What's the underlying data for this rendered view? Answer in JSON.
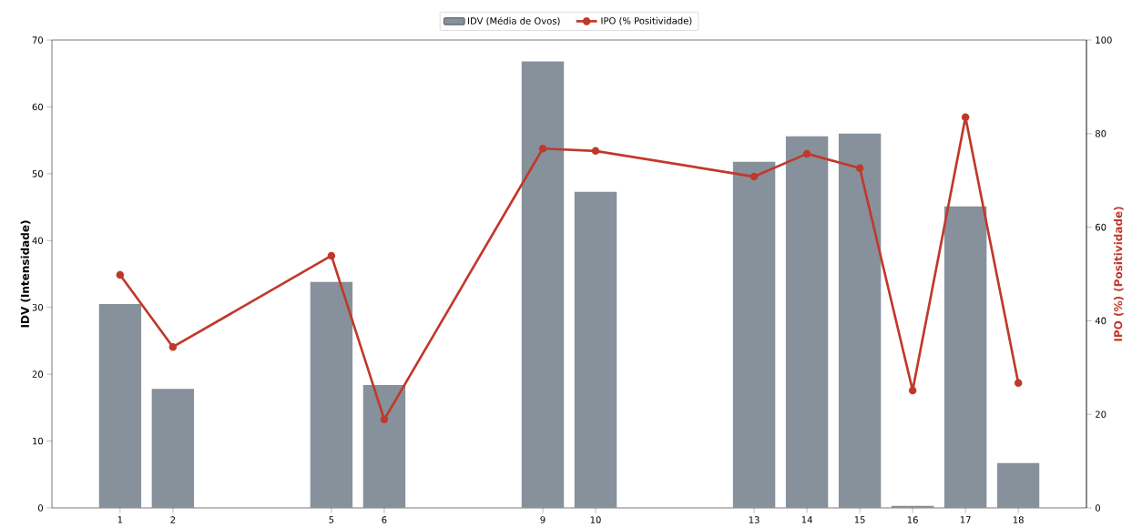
{
  "chart_data": {
    "type": "bar",
    "ylabel": "IDV (Intensidade)",
    "y2label": "IPO (%) (Positividade)",
    "x": [
      1,
      2,
      5,
      6,
      9,
      10,
      13,
      14,
      15,
      16,
      17,
      18
    ],
    "xlim": [
      -0.29,
      19.29
    ],
    "xticks": [
      1,
      2,
      5,
      6,
      9,
      10,
      13,
      14,
      15,
      16,
      17,
      18
    ],
    "ylim": [
      0,
      70
    ],
    "yticks": [
      0,
      10,
      20,
      30,
      40,
      50,
      60,
      70
    ],
    "y2lim": [
      0,
      100
    ],
    "y2ticks": [
      0,
      20,
      40,
      60,
      80,
      100
    ],
    "legend": "top",
    "grid": false,
    "series": [
      {
        "name": "IDV (Média de Ovos)",
        "color": "#86919c",
        "values": [
          30.5,
          17.8,
          33.8,
          18.4,
          66.8,
          47.3,
          51.8,
          55.6,
          56.0,
          0.3,
          45.1,
          6.7
        ]
      },
      {
        "name": "IPO (% Positividade)",
        "type": "line",
        "axis": "y2",
        "color": "#c0392b",
        "marker": "circle",
        "line_style": "solid",
        "values": [
          49.8,
          34.4,
          53.9,
          18.9,
          76.8,
          76.3,
          70.8,
          75.7,
          72.6,
          25.1,
          83.5,
          26.7
        ]
      }
    ]
  }
}
